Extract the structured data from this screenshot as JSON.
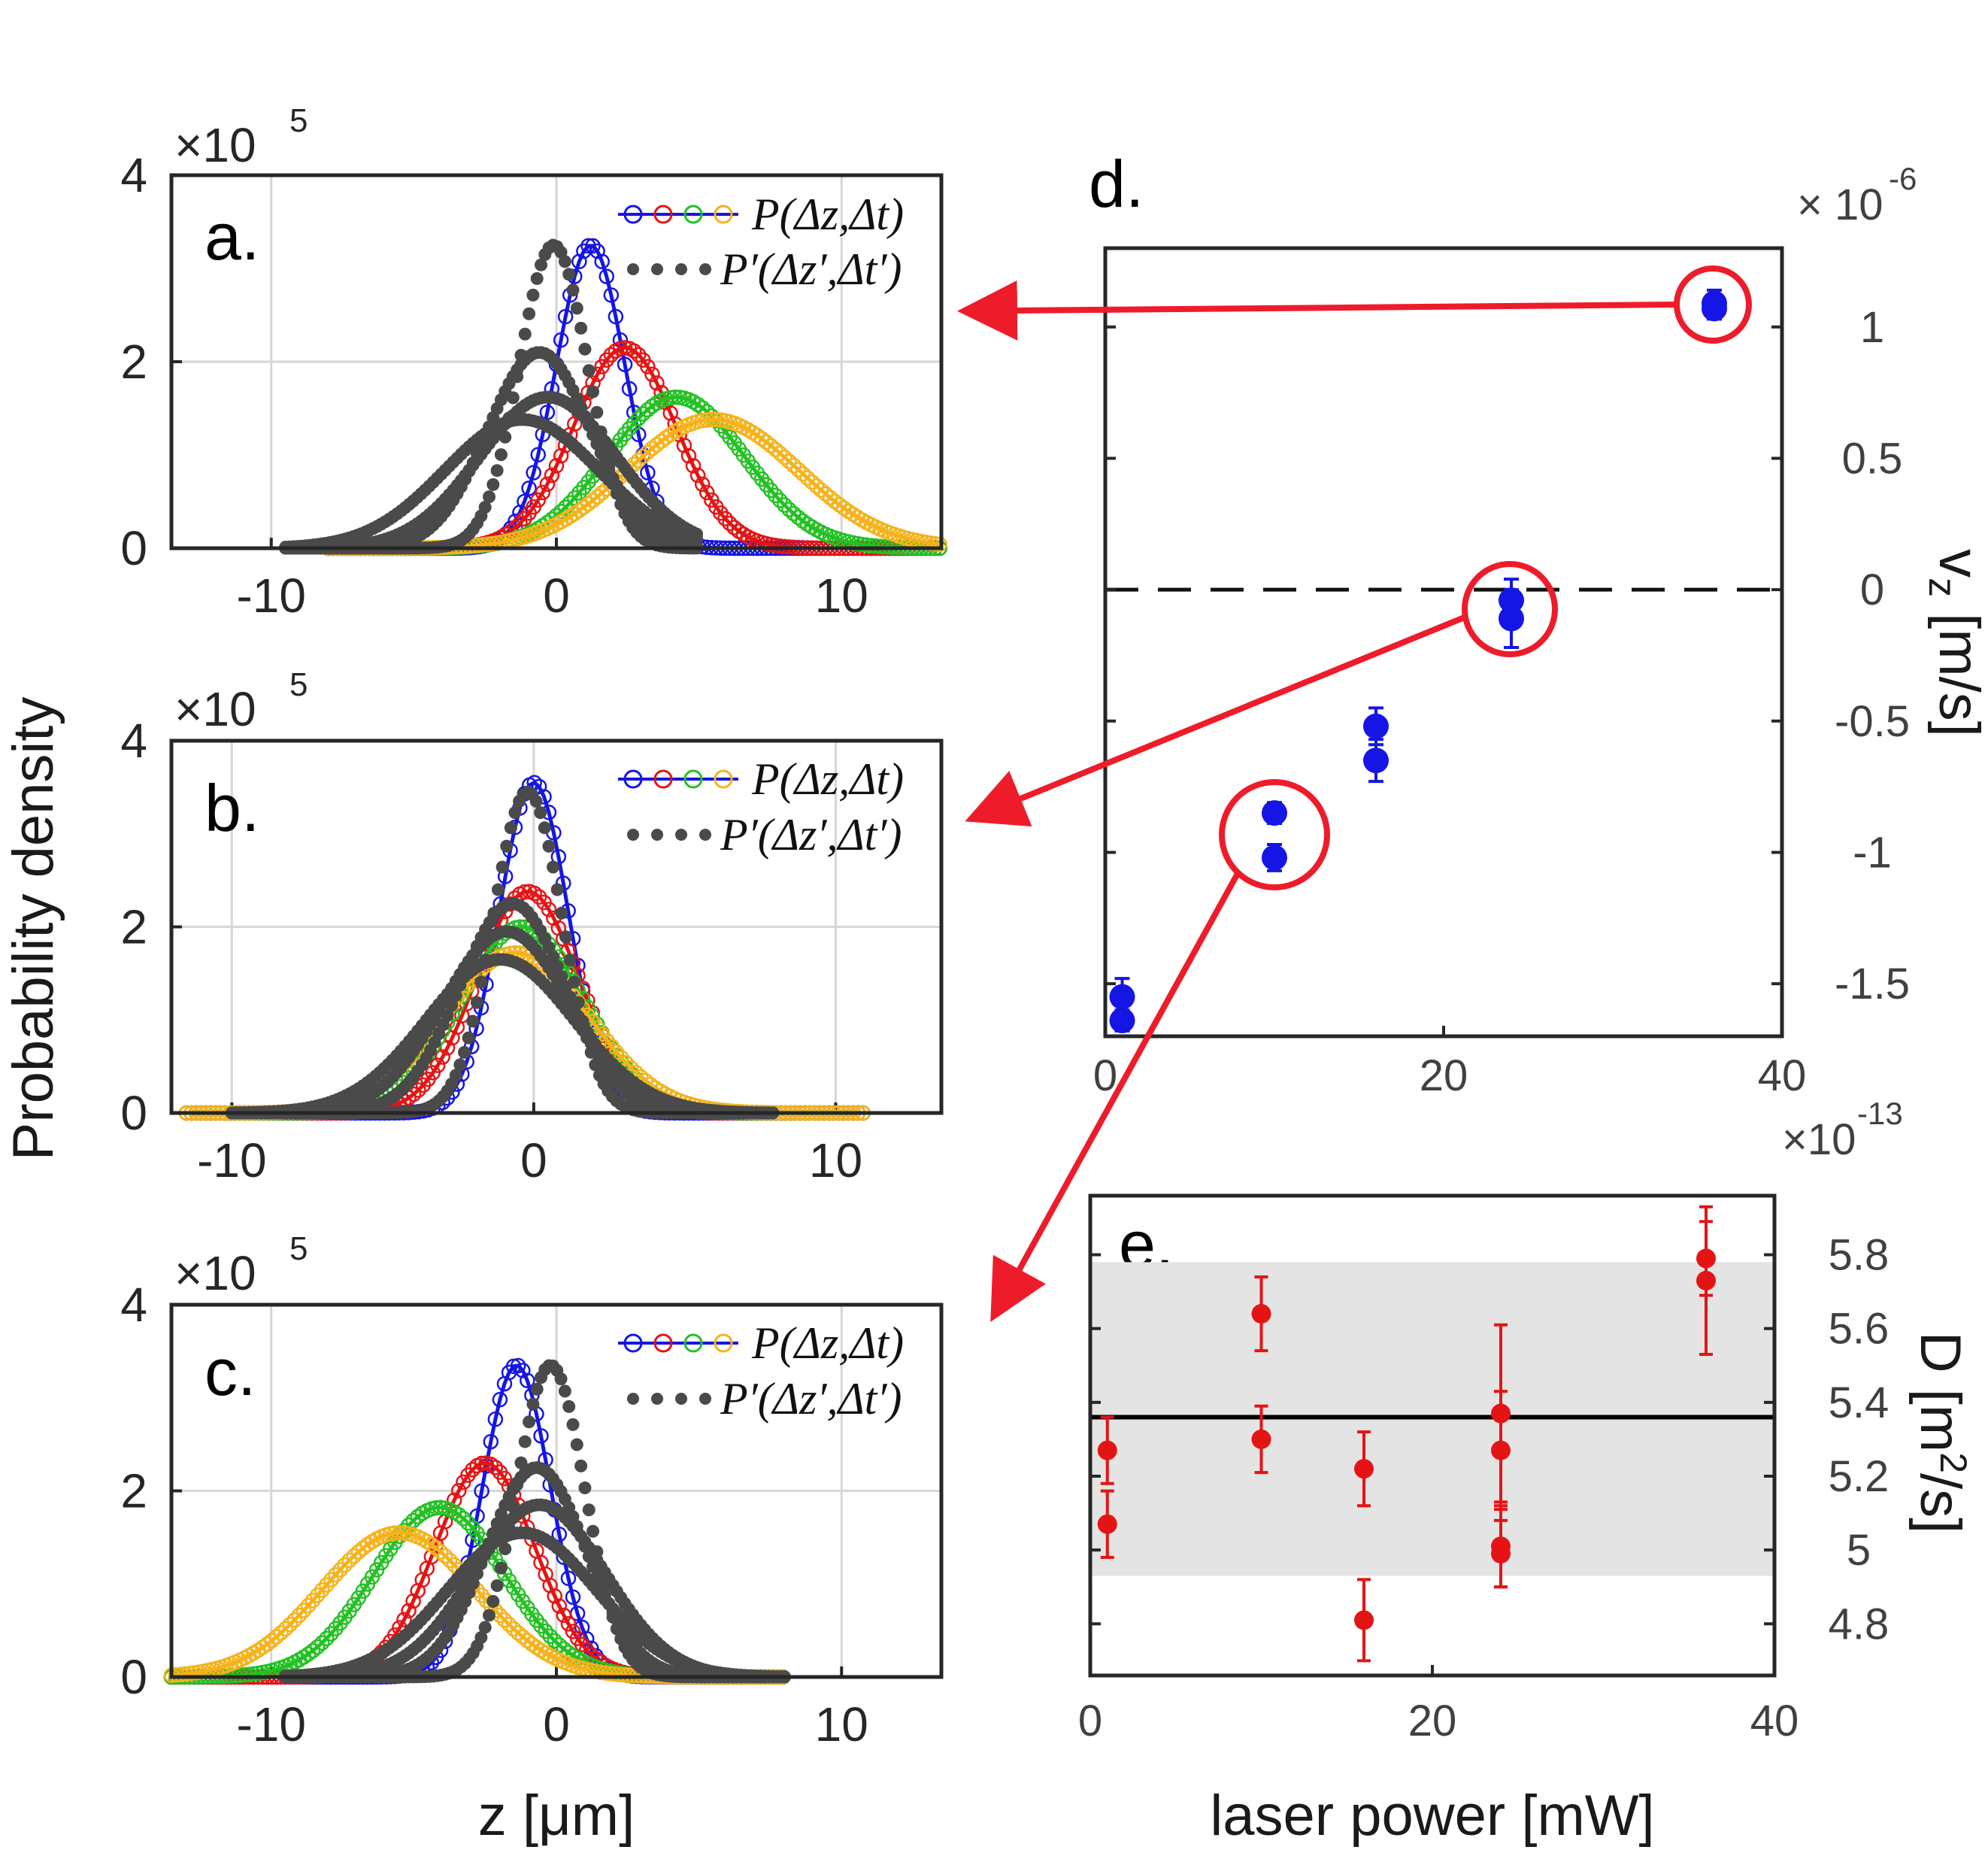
{
  "figure": {
    "ylabel_left": "Probability density",
    "xlabel_left": "z [μm]",
    "exponent_label": "×10",
    "exponent_power": "5"
  },
  "colors": {
    "blue": "#1515e6",
    "red": "#e51414",
    "green": "#22c222",
    "orange": "#f6b21a",
    "gray": "#4a4a4a",
    "arrow": "#ee1c2a",
    "shade": "#e4e4e4"
  },
  "chart_data": [
    {
      "id": "a",
      "type": "line",
      "panel_label": "a.",
      "title": "",
      "xlabel": "",
      "ylabel": "",
      "xlim": [
        -13.5,
        13.5
      ],
      "ylim": [
        0,
        4
      ],
      "y_multiplier": "×10^5",
      "xticks": [
        -10,
        0,
        10
      ],
      "yticks": [
        0,
        2,
        4
      ],
      "legend": [
        "P(Δz,Δt)",
        "P′(Δz′,Δt′)"
      ],
      "series": [
        {
          "name": "P blue",
          "color": "blue",
          "mu": 1.2,
          "sigma": 1.2,
          "amp": 3.25,
          "range": [
            -8,
            13.5
          ]
        },
        {
          "name": "P red",
          "color": "red",
          "mu": 2.4,
          "sigma": 1.8,
          "amp": 2.15,
          "range": [
            -8,
            13.5
          ]
        },
        {
          "name": "P green",
          "color": "green",
          "mu": 4.2,
          "sigma": 2.4,
          "amp": 1.62,
          "range": [
            -8,
            13.5
          ]
        },
        {
          "name": "P orange",
          "color": "orange",
          "mu": 5.5,
          "sigma": 3.0,
          "amp": 1.38,
          "range": [
            -8,
            13.5
          ]
        },
        {
          "name": "P' 1",
          "color": "gray",
          "mu": -0.1,
          "sigma": 1.2,
          "amp": 3.25,
          "range": [
            -9.5,
            5
          ]
        },
        {
          "name": "P' 2",
          "color": "gray",
          "mu": -0.6,
          "sigma": 1.8,
          "amp": 2.1,
          "range": [
            -9.5,
            5
          ]
        },
        {
          "name": "P' 3",
          "color": "gray",
          "mu": -0.3,
          "sigma": 2.4,
          "amp": 1.62,
          "range": [
            -9.5,
            5
          ]
        },
        {
          "name": "P' 4",
          "color": "gray",
          "mu": -1.2,
          "sigma": 2.7,
          "amp": 1.38,
          "range": [
            -9.5,
            5
          ]
        }
      ]
    },
    {
      "id": "b",
      "type": "line",
      "panel_label": "b.",
      "title": "",
      "xlabel": "",
      "ylabel": "",
      "xlim": [
        -12,
        13.5
      ],
      "ylim": [
        0,
        4
      ],
      "y_multiplier": "×10^5",
      "xticks": [
        -10,
        0,
        10
      ],
      "yticks": [
        0,
        2,
        4
      ],
      "legend": [
        "P(Δz,Δt)",
        "P′(Δz′,Δt′)"
      ],
      "series": [
        {
          "name": "P blue",
          "color": "blue",
          "mu": 0.0,
          "sigma": 1.15,
          "amp": 3.55,
          "range": [
            -11.5,
            11
          ]
        },
        {
          "name": "P red",
          "color": "red",
          "mu": -0.2,
          "sigma": 1.7,
          "amp": 2.38,
          "range": [
            -11.5,
            11
          ]
        },
        {
          "name": "P green",
          "color": "green",
          "mu": -0.4,
          "sigma": 2.05,
          "amp": 2.0,
          "range": [
            -11.5,
            11
          ]
        },
        {
          "name": "P orange",
          "color": "orange",
          "mu": -0.6,
          "sigma": 2.4,
          "amp": 1.72,
          "range": [
            -11.5,
            11
          ]
        },
        {
          "name": "P' 1",
          "color": "gray",
          "mu": -0.2,
          "sigma": 1.15,
          "amp": 3.45,
          "range": [
            -10,
            8
          ]
        },
        {
          "name": "P' 2",
          "color": "gray",
          "mu": -0.7,
          "sigma": 1.75,
          "amp": 2.25,
          "range": [
            -10,
            8
          ]
        },
        {
          "name": "P' 3",
          "color": "gray",
          "mu": -0.9,
          "sigma": 2.1,
          "amp": 1.95,
          "range": [
            -10,
            8
          ]
        },
        {
          "name": "P' 4",
          "color": "gray",
          "mu": -1.1,
          "sigma": 2.45,
          "amp": 1.65,
          "range": [
            -10,
            8
          ]
        }
      ]
    },
    {
      "id": "c",
      "type": "line",
      "panel_label": "c.",
      "title": "",
      "xlabel": "z [μm]",
      "ylabel": "",
      "xlim": [
        -13.5,
        13.5
      ],
      "ylim": [
        0,
        4
      ],
      "y_multiplier": "×10^5",
      "xticks": [
        -10,
        0,
        10
      ],
      "yticks": [
        0,
        2,
        4
      ],
      "legend": [
        "P(Δz,Δt)",
        "P′(Δz′,Δt′)"
      ],
      "series": [
        {
          "name": "P blue",
          "color": "blue",
          "mu": -1.4,
          "sigma": 1.2,
          "amp": 3.35,
          "range": [
            -13.5,
            8
          ]
        },
        {
          "name": "P red",
          "color": "red",
          "mu": -2.5,
          "sigma": 1.75,
          "amp": 2.3,
          "range": [
            -13.5,
            8
          ]
        },
        {
          "name": "P green",
          "color": "green",
          "mu": -4.1,
          "sigma": 2.3,
          "amp": 1.82,
          "range": [
            -13.5,
            8
          ]
        },
        {
          "name": "P orange",
          "color": "orange",
          "mu": -5.5,
          "sigma": 2.7,
          "amp": 1.55,
          "range": [
            -13.5,
            8
          ]
        },
        {
          "name": "P' 1",
          "color": "gray",
          "mu": -0.2,
          "sigma": 1.2,
          "amp": 3.35,
          "range": [
            -9.5,
            8
          ]
        },
        {
          "name": "P' 2",
          "color": "gray",
          "mu": -0.7,
          "sigma": 1.75,
          "amp": 2.25,
          "range": [
            -9.5,
            8
          ]
        },
        {
          "name": "P' 3",
          "color": "gray",
          "mu": -0.6,
          "sigma": 2.3,
          "amp": 1.85,
          "range": [
            -9.5,
            8
          ]
        },
        {
          "name": "P' 4",
          "color": "gray",
          "mu": -1.2,
          "sigma": 2.6,
          "amp": 1.55,
          "range": [
            -9.5,
            8
          ]
        }
      ]
    },
    {
      "id": "d",
      "type": "scatter",
      "panel_label": "d.",
      "title": "",
      "xlabel": "",
      "ylabel": "v_z [m/s]",
      "xlim": [
        0,
        40
      ],
      "ylim": [
        -1.7,
        1.3
      ],
      "y_multiplier": "×10^-6",
      "xticks": [
        0,
        20,
        40
      ],
      "yticks": [
        -1.5,
        -1,
        -0.5,
        0,
        0.5,
        1
      ],
      "ytick_labels": [
        "-1.5",
        "-1",
        "-0.5",
        "0",
        "0.5",
        "1"
      ],
      "reference_line": 0,
      "points": [
        {
          "x": 1,
          "y": -1.55,
          "err": 0.07
        },
        {
          "x": 1,
          "y": -1.64,
          "err": 0.04
        },
        {
          "x": 10,
          "y": -0.85,
          "err": 0.04
        },
        {
          "x": 10,
          "y": -1.02,
          "err": 0.05
        },
        {
          "x": 16,
          "y": -0.52,
          "err": 0.07
        },
        {
          "x": 16,
          "y": -0.65,
          "err": 0.08
        },
        {
          "x": 24,
          "y": -0.04,
          "err": 0.08
        },
        {
          "x": 24,
          "y": -0.11,
          "err": 0.11
        },
        {
          "x": 36,
          "y": 1.09,
          "err": 0.05
        },
        {
          "x": 36,
          "y": 1.07,
          "err": 0.04
        }
      ],
      "highlighted_x": [
        36,
        24,
        10
      ]
    },
    {
      "id": "e",
      "type": "scatter",
      "panel_label": "e.",
      "title": "",
      "xlabel": "laser power [mW]",
      "ylabel": "D [m²/s]",
      "xlim": [
        0,
        40
      ],
      "ylim": [
        4.66,
        5.96
      ],
      "y_multiplier": "×10^-13",
      "xticks": [
        0,
        20,
        40
      ],
      "yticks": [
        4.8,
        5.0,
        5.2,
        5.4,
        5.6,
        5.8
      ],
      "ytick_labels": [
        "4.8",
        "5",
        "5.2",
        "5.4",
        "5.6",
        "5.8"
      ],
      "mean": 5.36,
      "band": [
        4.93,
        5.78
      ],
      "points": [
        {
          "x": 1,
          "y": 5.07,
          "err": 0.09
        },
        {
          "x": 1,
          "y": 5.27,
          "err": 0.09
        },
        {
          "x": 10,
          "y": 5.64,
          "err": 0.1
        },
        {
          "x": 10,
          "y": 5.3,
          "err": 0.09
        },
        {
          "x": 16,
          "y": 5.22,
          "err": 0.1
        },
        {
          "x": 16,
          "y": 4.81,
          "err": 0.11
        },
        {
          "x": 24,
          "y": 5.37,
          "err": 0.24
        },
        {
          "x": 24,
          "y": 5.27,
          "err": 0.16
        },
        {
          "x": 24,
          "y": 5.01,
          "err": 0.11
        },
        {
          "x": 24,
          "y": 4.99,
          "err": 0.09
        },
        {
          "x": 36,
          "y": 5.79,
          "err": 0.1
        },
        {
          "x": 36,
          "y": 5.73,
          "err": 0.2
        }
      ]
    }
  ]
}
